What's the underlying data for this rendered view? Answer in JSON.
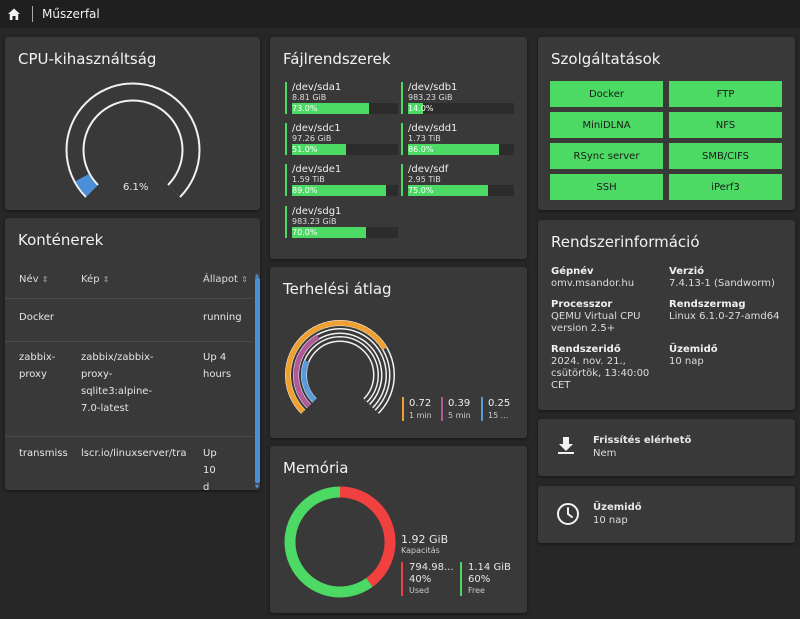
{
  "header": {
    "title": "Műszerfal",
    "home_icon": "home-icon"
  },
  "cpu": {
    "title": "CPU-kihasználtság",
    "value": "6.1%",
    "percent": 6.1,
    "color": "#4a90d9"
  },
  "containers": {
    "title": "Konténerek",
    "columns": [
      "Név",
      "Kép",
      "Állapot"
    ],
    "rows": [
      {
        "name": [
          "Docker"
        ],
        "image": [],
        "status": [
          "running"
        ]
      },
      {
        "name": [
          "zabbix-",
          "proxy"
        ],
        "image": [
          "zabbix/zabbix-",
          "proxy-",
          "sqlite3:alpine-",
          "7.0-latest"
        ],
        "status": [
          "Up 4",
          "hours"
        ]
      },
      {
        "name": [
          "transmiss"
        ],
        "image": [
          "lscr.io/linuxserver/tra"
        ],
        "status": [
          "Up",
          "10",
          "d"
        ]
      }
    ]
  },
  "filesystems": {
    "title": "Fájlrendszerek",
    "items": [
      {
        "name": "/dev/sda1",
        "size": "8.81 GiB",
        "pct": "73.0%",
        "value": 73.0
      },
      {
        "name": "/dev/sdb1",
        "size": "983.23 GiB",
        "pct": "14.0%",
        "value": 14.0
      },
      {
        "name": "/dev/sdc1",
        "size": "97.26 GiB",
        "pct": "51.0%",
        "value": 51.0
      },
      {
        "name": "/dev/sdd1",
        "size": "1.73 TiB",
        "pct": "86.0%",
        "value": 86.0
      },
      {
        "name": "/dev/sde1",
        "size": "1.59 TiB",
        "pct": "89.0%",
        "value": 89.0
      },
      {
        "name": "/dev/sdf",
        "size": "2.95 TiB",
        "pct": "75.0%",
        "value": 75.0
      },
      {
        "name": "/dev/sdg1",
        "size": "983.23 GiB",
        "pct": "70.0%",
        "value": 70.0
      }
    ]
  },
  "load": {
    "title": "Terhelési átlag",
    "items": [
      {
        "value": "0.72",
        "label": "1 min",
        "color": "#f0a030"
      },
      {
        "value": "0.39",
        "label": "5 min",
        "color": "#b05a9a"
      },
      {
        "value": "0.25",
        "label": "15 ...",
        "color": "#5a9ad8"
      }
    ]
  },
  "memory": {
    "title": "Memória",
    "total": "1.92 GiB",
    "total_label": "Kapacitás",
    "used": {
      "value": "794.98...",
      "pct": "40%",
      "label": "Used",
      "fraction": 0.4,
      "color": "#f04040"
    },
    "free": {
      "value": "1.14 GiB",
      "pct": "60%",
      "label": "Free",
      "fraction": 0.6,
      "color": "#4cd964"
    }
  },
  "services": {
    "title": "Szolgáltatások",
    "items": [
      "Docker",
      "FTP",
      "MiniDLNA",
      "NFS",
      "RSync server",
      "SMB/CIFS",
      "SSH",
      "iPerf3"
    ]
  },
  "sysinfo": {
    "title": "Rendszerinformáció",
    "hostname_key": "Gépnév",
    "hostname": "omv.msandor.hu",
    "version_key": "Verzió",
    "version": "7.4.13-1 (Sandworm)",
    "cpu_key": "Processzor",
    "cpu_lines": [
      "QEMU Virtual CPU",
      "version 2.5+"
    ],
    "kernel_key": "Rendszermag",
    "kernel": "Linux 6.1.0-27-amd64",
    "time_key": "Rendszeridő",
    "time_lines": [
      "2024. nov. 21.,",
      "csütörtök, 13:40:00",
      "CET"
    ],
    "uptime_key": "Üzemidő",
    "uptime": "10 nap"
  },
  "update": {
    "key": "Frissítés elérhető",
    "value": "Nem",
    "icon": "download-icon"
  },
  "uptime_card": {
    "key": "Üzemidő",
    "value": "10 nap",
    "icon": "clock-icon"
  }
}
